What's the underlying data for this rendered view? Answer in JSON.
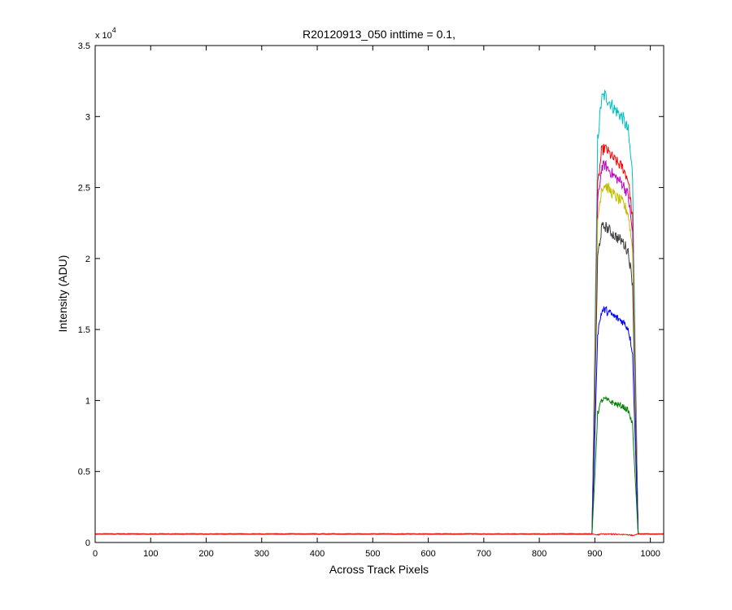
{
  "chart_data": {
    "type": "line",
    "title": "R20120913_050 inttime = 0.1,",
    "xlabel": "Across Track Pixels",
    "ylabel": "Intensity (ADU)",
    "xlim": [
      0,
      1024
    ],
    "ylim": [
      0,
      35000
    ],
    "x_ticks": [
      0,
      100,
      200,
      300,
      400,
      500,
      600,
      700,
      800,
      900,
      1000
    ],
    "y_ticks": [
      0,
      5000,
      10000,
      15000,
      20000,
      25000,
      30000,
      35000
    ],
    "y_tick_labels": [
      "0",
      "0.5",
      "1",
      "1.5",
      "2",
      "2.5",
      "3",
      "3.5"
    ],
    "y_exponent_label": "x 10",
    "y_exponent_power": "4",
    "grid": false,
    "baseline": 600,
    "profile": {
      "rise_start": 895,
      "rise_end": 905,
      "plateau_start": 905,
      "plateau_end": 968,
      "fall_end": 978,
      "left_shoulder": [
        [
          905,
          0.9
        ],
        [
          912,
          0.99
        ],
        [
          918,
          1.0
        ],
        [
          935,
          0.97
        ],
        [
          950,
          0.95
        ],
        [
          960,
          0.92
        ],
        [
          968,
          0.82
        ]
      ]
    },
    "series": [
      {
        "color": "#00bfbf",
        "peak": 31500,
        "noise": 500
      },
      {
        "color": "#ff0000",
        "peak": 27800,
        "noise": 400
      },
      {
        "color": "#bf00bf",
        "peak": 26600,
        "noise": 400
      },
      {
        "color": "#bfbf00",
        "peak": 25200,
        "noise": 400
      },
      {
        "color": "#404040",
        "peak": 22300,
        "noise": 400
      },
      {
        "color": "#0000ff",
        "peak": 16400,
        "noise": 300
      },
      {
        "color": "#008000",
        "peak": 10100,
        "noise": 200
      },
      {
        "color": "#ff0000",
        "peak": 600,
        "noise": 40
      }
    ]
  }
}
